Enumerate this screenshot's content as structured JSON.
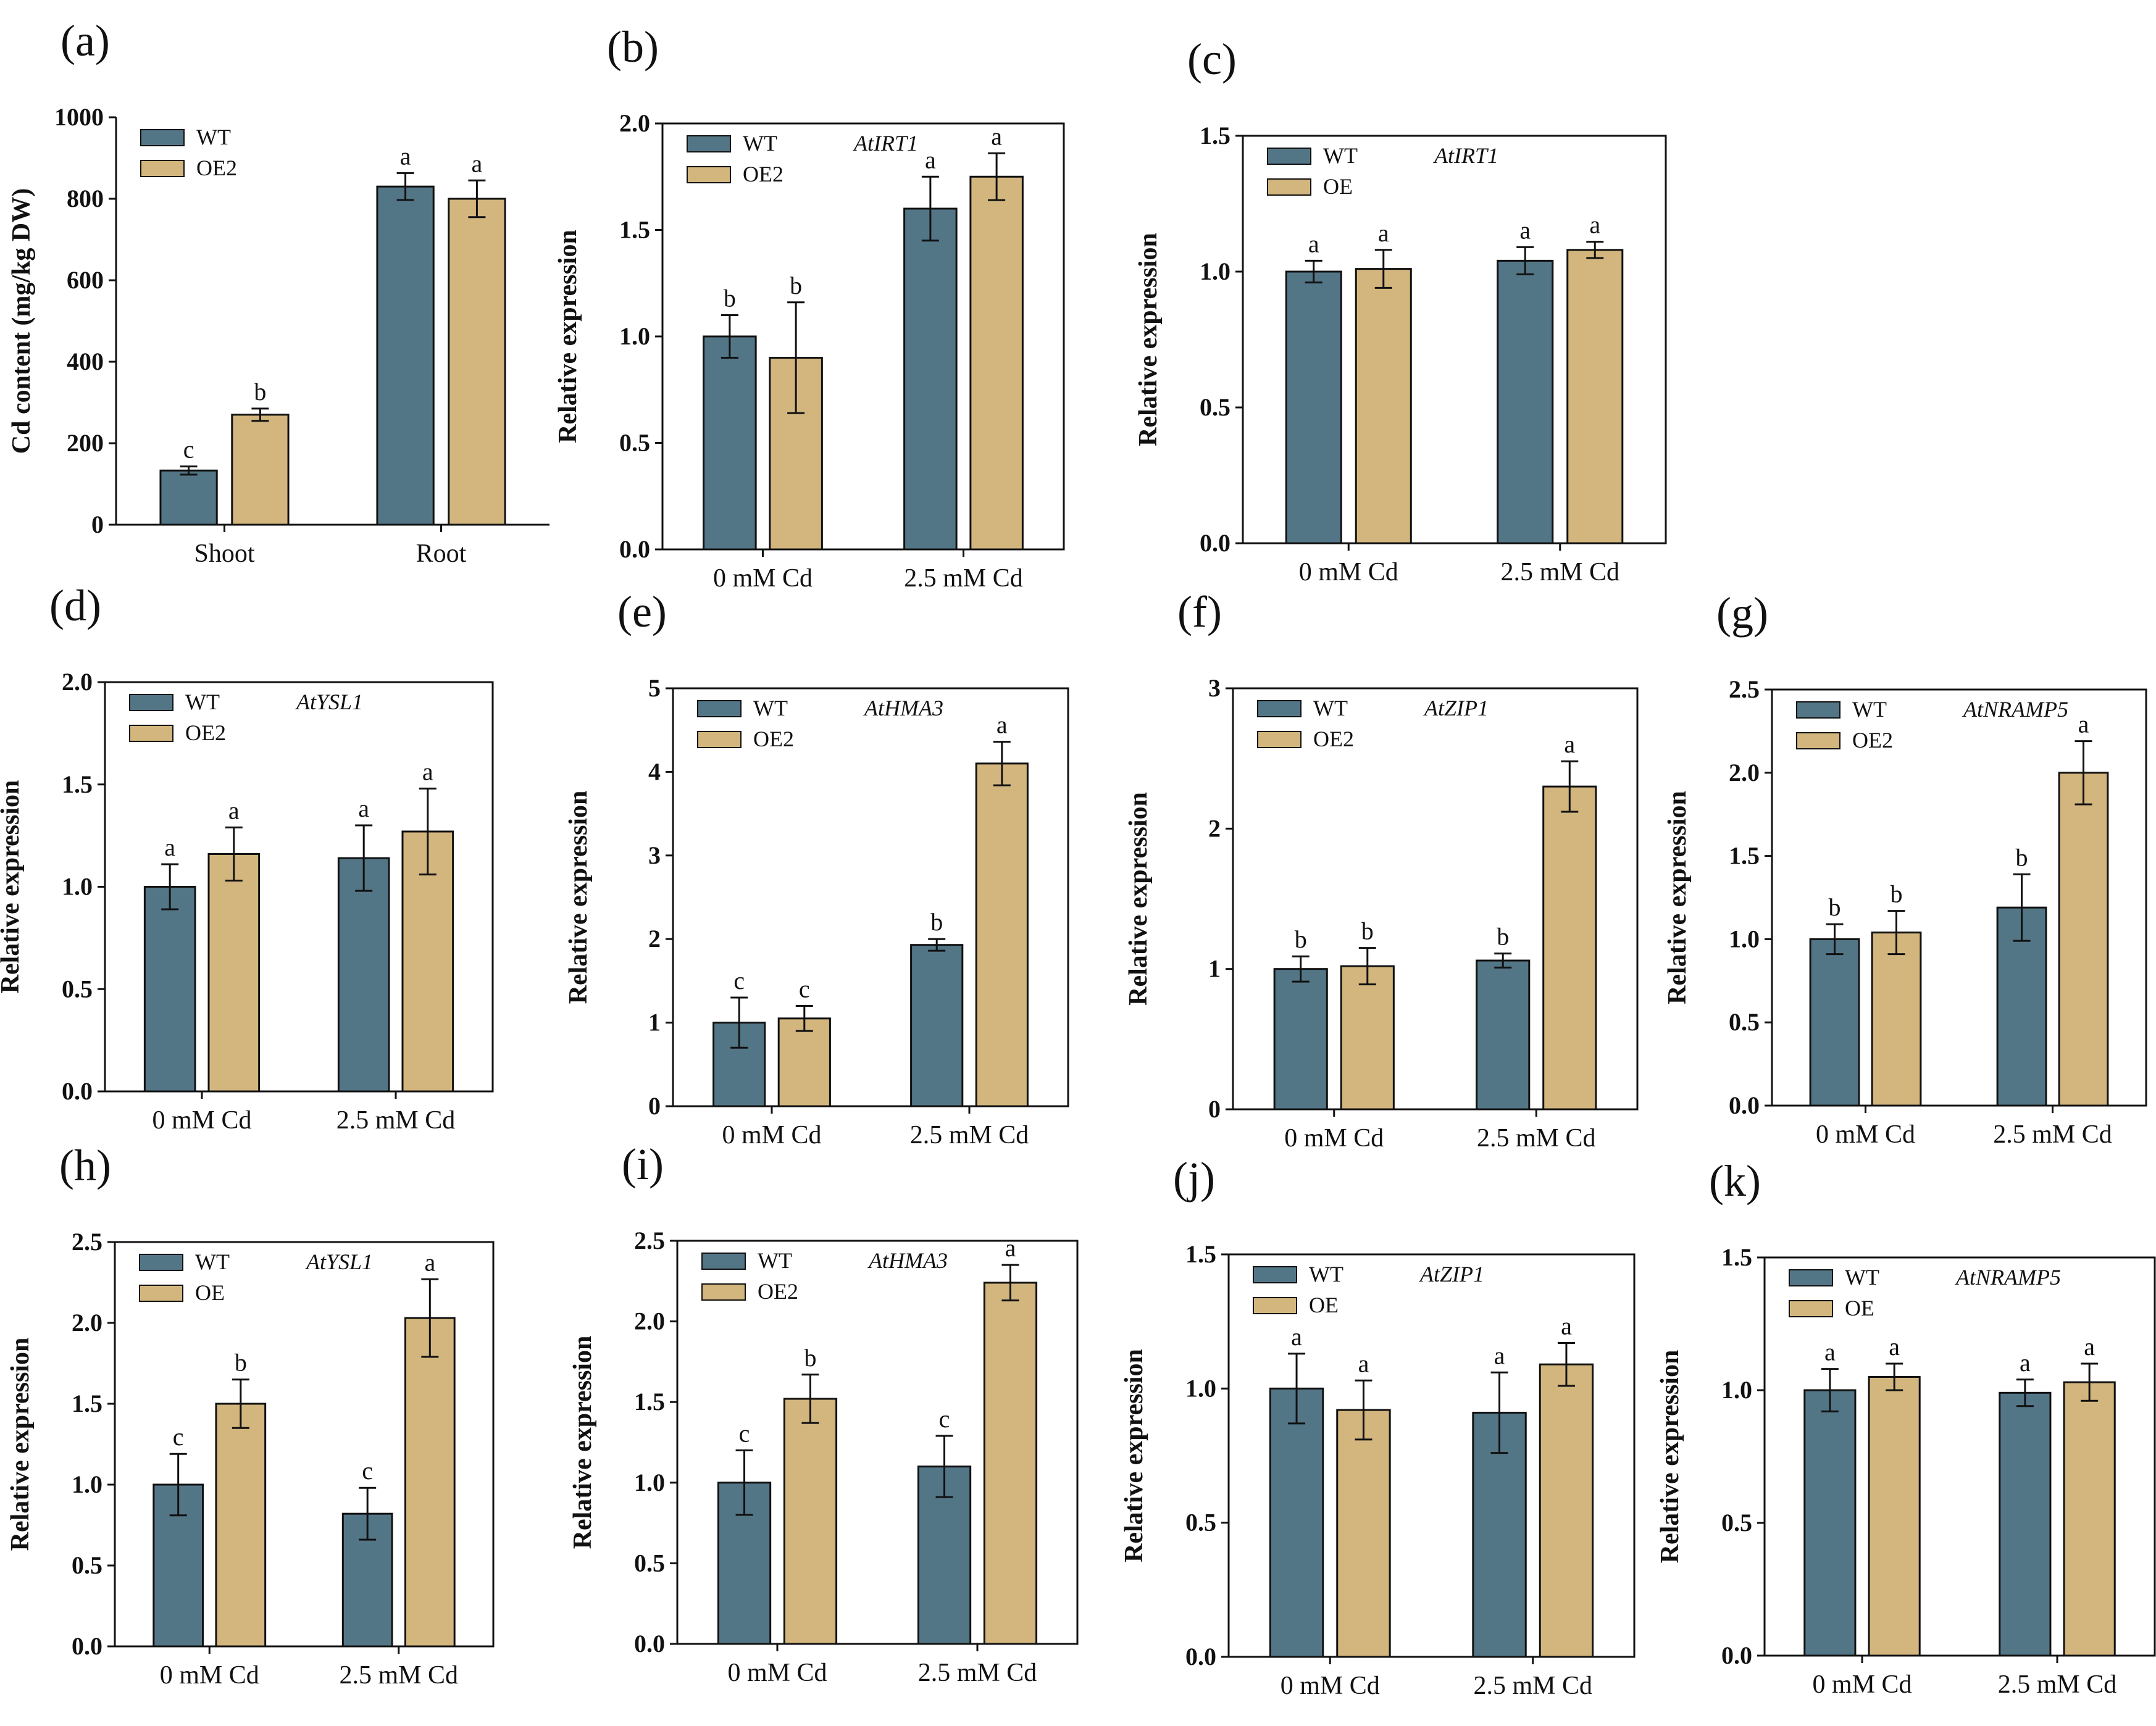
{
  "figure": {
    "description": ""
  },
  "colors": {
    "wt": "#537687",
    "oe": "#d3b67e",
    "axis": "#111111"
  },
  "chart_data": [
    {
      "panel": "(a)",
      "type": "bar",
      "title": "",
      "gene": "",
      "ylabel": "Cd content (mg/kg DW)",
      "xlabel": "",
      "categories": [
        "Shoot",
        "Root"
      ],
      "ylim": [
        0,
        1000
      ],
      "yticks": [
        "0",
        "200",
        "400",
        "600",
        "800",
        "1000"
      ],
      "series": [
        {
          "name": "WT",
          "values": [
            133,
            830
          ],
          "errors": [
            10,
            33
          ],
          "letters": [
            "c",
            "a"
          ]
        },
        {
          "name": "OE2",
          "values": [
            270,
            800
          ],
          "errors": [
            15,
            45
          ],
          "letters": [
            "b",
            "a"
          ]
        }
      ],
      "frame": "axes"
    },
    {
      "panel": "(b)",
      "type": "bar",
      "title": "",
      "gene": "AtIRT1",
      "ylabel": "Relative expression",
      "xlabel": "",
      "categories": [
        "0 mM Cd",
        "2.5 mM Cd"
      ],
      "ylim": [
        0,
        2.0
      ],
      "yticks": [
        "0.0",
        "0.5",
        "1.0",
        "1.5",
        "2.0"
      ],
      "series": [
        {
          "name": "WT",
          "values": [
            1.0,
            1.6
          ],
          "errors": [
            0.1,
            0.15
          ],
          "letters": [
            "b",
            "a"
          ]
        },
        {
          "name": "OE2",
          "values": [
            0.9,
            1.75
          ],
          "errors": [
            0.26,
            0.11
          ],
          "letters": [
            "b",
            "a"
          ]
        }
      ],
      "frame": "box"
    },
    {
      "panel": "(c)",
      "type": "bar",
      "title": "",
      "gene": "AtIRT1",
      "ylabel": "Relative expression",
      "xlabel": "",
      "categories": [
        "0 mM Cd",
        "2.5 mM Cd"
      ],
      "ylim": [
        0,
        1.5
      ],
      "yticks": [
        "0.0",
        "0.5",
        "1.0",
        "1.5"
      ],
      "series": [
        {
          "name": "WT",
          "values": [
            1.0,
            1.04
          ],
          "errors": [
            0.04,
            0.05
          ],
          "letters": [
            "a",
            "a"
          ]
        },
        {
          "name": "OE",
          "values": [
            1.01,
            1.08
          ],
          "errors": [
            0.07,
            0.03
          ],
          "letters": [
            "a",
            "a"
          ]
        }
      ],
      "frame": "box"
    },
    {
      "panel": "(d)",
      "type": "bar",
      "title": "",
      "gene": "AtYSL1",
      "ylabel": "Relative expression",
      "xlabel": "",
      "categories": [
        "0 mM Cd",
        "2.5 mM Cd"
      ],
      "ylim": [
        0,
        2.0
      ],
      "yticks": [
        "0.0",
        "0.5",
        "1.0",
        "1.5",
        "2.0"
      ],
      "series": [
        {
          "name": "WT",
          "values": [
            1.0,
            1.14
          ],
          "errors": [
            0.11,
            0.16
          ],
          "letters": [
            "a",
            "a"
          ]
        },
        {
          "name": "OE2",
          "values": [
            1.16,
            1.27
          ],
          "errors": [
            0.13,
            0.21
          ],
          "letters": [
            "a",
            "a"
          ]
        }
      ],
      "frame": "box"
    },
    {
      "panel": "(e)",
      "type": "bar",
      "title": "",
      "gene": "AtHMA3",
      "ylabel": "Relative expression",
      "xlabel": "",
      "categories": [
        "0 mM Cd",
        "2.5 mM Cd"
      ],
      "ylim": [
        0,
        5
      ],
      "yticks": [
        "0",
        "1",
        "2",
        "3",
        "4",
        "5"
      ],
      "series": [
        {
          "name": "WT",
          "values": [
            1.0,
            1.93
          ],
          "errors": [
            0.3,
            0.07
          ],
          "letters": [
            "c",
            "b"
          ]
        },
        {
          "name": "OE2",
          "values": [
            1.05,
            4.1
          ],
          "errors": [
            0.15,
            0.26
          ],
          "letters": [
            "c",
            "a"
          ]
        }
      ],
      "frame": "box"
    },
    {
      "panel": "(f)",
      "type": "bar",
      "title": "",
      "gene": "AtZIP1",
      "ylabel": "Relative expression",
      "xlabel": "",
      "categories": [
        "0 mM Cd",
        "2.5 mM Cd"
      ],
      "ylim": [
        0,
        3
      ],
      "yticks": [
        "0",
        "1",
        "2",
        "3"
      ],
      "series": [
        {
          "name": "WT",
          "values": [
            1.0,
            1.06
          ],
          "errors": [
            0.09,
            0.05
          ],
          "letters": [
            "b",
            "b"
          ]
        },
        {
          "name": "OE2",
          "values": [
            1.02,
            2.3
          ],
          "errors": [
            0.13,
            0.18
          ],
          "letters": [
            "b",
            "a"
          ]
        }
      ],
      "frame": "box"
    },
    {
      "panel": "(g)",
      "type": "bar",
      "title": "",
      "gene": "AtNRAMP5",
      "ylabel": "Relative expression",
      "xlabel": "",
      "categories": [
        "0 mM Cd",
        "2.5 mM Cd"
      ],
      "ylim": [
        0,
        2.5
      ],
      "yticks": [
        "0.0",
        "0.5",
        "1.0",
        "1.5",
        "2.0",
        "2.5"
      ],
      "series": [
        {
          "name": "WT",
          "values": [
            1.0,
            1.19
          ],
          "errors": [
            0.09,
            0.2
          ],
          "letters": [
            "b",
            "b"
          ]
        },
        {
          "name": "OE2",
          "values": [
            1.04,
            2.0
          ],
          "errors": [
            0.13,
            0.19
          ],
          "letters": [
            "b",
            "a"
          ]
        }
      ],
      "frame": "box"
    },
    {
      "panel": "(h)",
      "type": "bar",
      "title": "",
      "gene": "AtYSL1",
      "ylabel": "Relative expression",
      "xlabel": "",
      "categories": [
        "0 mM Cd",
        "2.5 mM Cd"
      ],
      "ylim": [
        0,
        2.5
      ],
      "yticks": [
        "0.0",
        "0.5",
        "1.0",
        "1.5",
        "2.0",
        "2.5"
      ],
      "series": [
        {
          "name": "WT",
          "values": [
            1.0,
            0.82
          ],
          "errors": [
            0.19,
            0.16
          ],
          "letters": [
            "c",
            "c"
          ]
        },
        {
          "name": "OE",
          "values": [
            1.5,
            2.03
          ],
          "errors": [
            0.15,
            0.24
          ],
          "letters": [
            "b",
            "a"
          ]
        }
      ],
      "frame": "box"
    },
    {
      "panel": "(i)",
      "type": "bar",
      "title": "",
      "gene": "AtHMA3",
      "ylabel": "Relative expression",
      "xlabel": "",
      "categories": [
        "0 mM Cd",
        "2.5 mM Cd"
      ],
      "ylim": [
        0,
        2.5
      ],
      "yticks": [
        "0.0",
        "0.5",
        "1.0",
        "1.5",
        "2.0",
        "2.5"
      ],
      "series": [
        {
          "name": "WT",
          "values": [
            1.0,
            1.1
          ],
          "errors": [
            0.2,
            0.19
          ],
          "letters": [
            "c",
            "c"
          ]
        },
        {
          "name": "OE2",
          "values": [
            1.52,
            2.24
          ],
          "errors": [
            0.15,
            0.11
          ],
          "letters": [
            "b",
            "a"
          ]
        }
      ],
      "frame": "box"
    },
    {
      "panel": "(j)",
      "type": "bar",
      "title": "",
      "gene": "AtZIP1",
      "ylabel": "Relative expression",
      "xlabel": "",
      "categories": [
        "0 mM Cd",
        "2.5 mM Cd"
      ],
      "ylim": [
        0,
        1.5
      ],
      "yticks": [
        "0.0",
        "0.5",
        "1.0",
        "1.5"
      ],
      "series": [
        {
          "name": "WT",
          "values": [
            1.0,
            0.91
          ],
          "errors": [
            0.13,
            0.15
          ],
          "letters": [
            "a",
            "a"
          ]
        },
        {
          "name": "OE",
          "values": [
            0.92,
            1.09
          ],
          "errors": [
            0.11,
            0.08
          ],
          "letters": [
            "a",
            "a"
          ]
        }
      ],
      "frame": "box"
    },
    {
      "panel": "(k)",
      "type": "bar",
      "title": "",
      "gene": "AtNRAMP5",
      "ylabel": "Relative expression",
      "xlabel": "",
      "categories": [
        "0 mM Cd",
        "2.5 mM Cd"
      ],
      "ylim": [
        0,
        1.5
      ],
      "yticks": [
        "0.0",
        "0.5",
        "1.0",
        "1.5"
      ],
      "series": [
        {
          "name": "WT",
          "values": [
            1.0,
            0.99
          ],
          "errors": [
            0.08,
            0.05
          ],
          "letters": [
            "a",
            "a"
          ]
        },
        {
          "name": "OE",
          "values": [
            1.05,
            1.03
          ],
          "errors": [
            0.05,
            0.07
          ],
          "letters": [
            "a",
            "a"
          ]
        }
      ],
      "frame": "box"
    }
  ]
}
